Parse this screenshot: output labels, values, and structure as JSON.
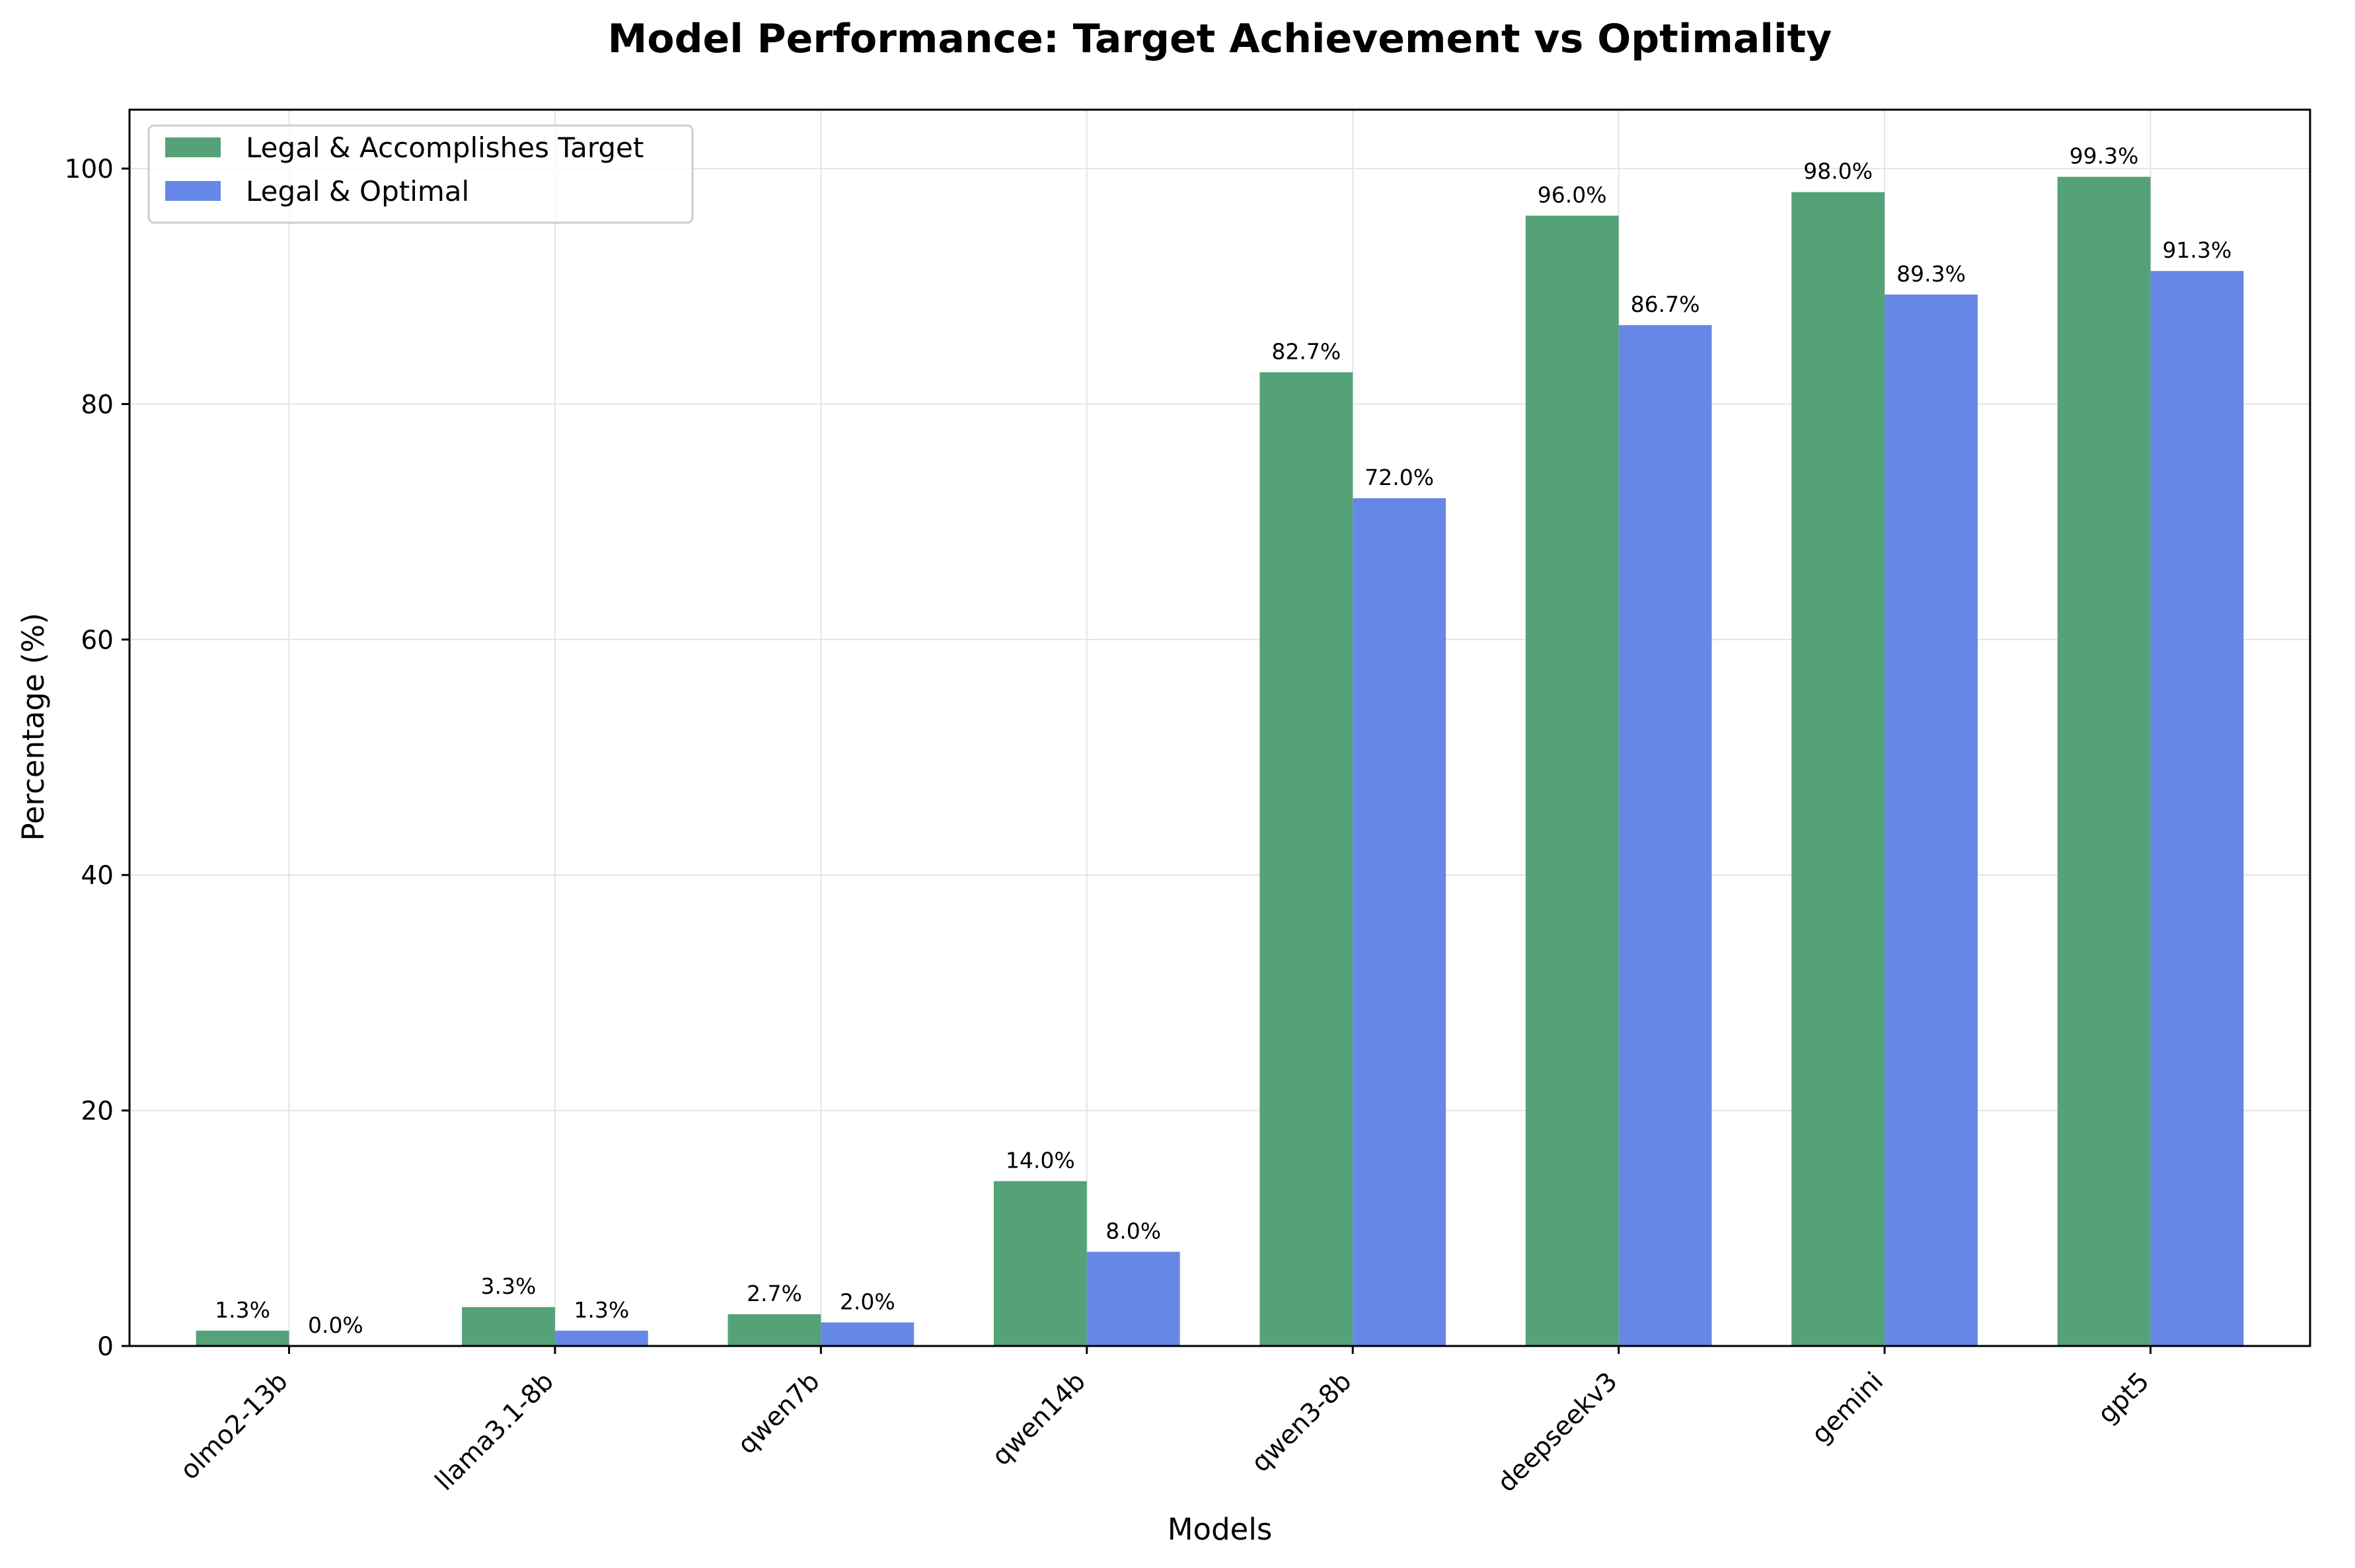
{
  "chart_data": {
    "type": "bar",
    "title": "Model Performance: Target Achievement vs Optimality",
    "xlabel": "Models",
    "ylabel": "Percentage (%)",
    "ylim": [
      0,
      105
    ],
    "yticks": [
      0,
      20,
      40,
      60,
      80,
      100
    ],
    "grid": true,
    "legend_position": "top-left",
    "categories": [
      "olmo2-13b",
      "llama3.1-8b",
      "qwen7b",
      "qwen14b",
      "qwen3-8b",
      "deepseekv3",
      "gemini",
      "gpt5"
    ],
    "series": [
      {
        "name": "Legal & Accomplishes Target",
        "color": "#55a278",
        "values": [
          1.3,
          3.3,
          2.7,
          14.0,
          82.7,
          96.0,
          98.0,
          99.3
        ],
        "labels": [
          "1.3%",
          "3.3%",
          "2.7%",
          "14.0%",
          "82.7%",
          "96.0%",
          "98.0%",
          "99.3%"
        ]
      },
      {
        "name": "Legal & Optimal",
        "color": "#6787e6",
        "values": [
          0.0,
          1.3,
          2.0,
          8.0,
          72.0,
          86.7,
          89.3,
          91.3
        ],
        "labels": [
          "0.0%",
          "1.3%",
          "2.0%",
          "8.0%",
          "72.0%",
          "86.7%",
          "89.3%",
          "91.3%"
        ]
      }
    ]
  }
}
